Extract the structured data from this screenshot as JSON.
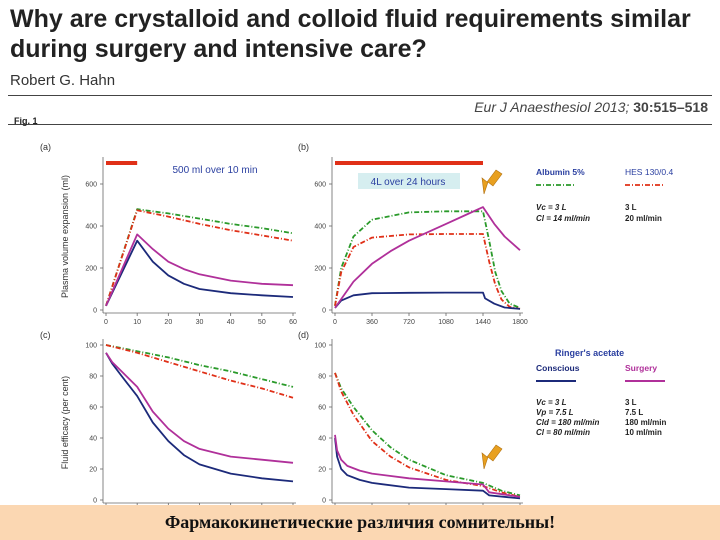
{
  "slide": {
    "title": "Why are crystalloid and colloid fluid requirements similar during surgery and intensive care?",
    "author": "Robert G. Hahn",
    "citation_journal": "Eur J Anaesthesiol 2013;",
    "citation_ref": "30:515–518",
    "fig_label": "Fig. 1",
    "footer": "Фармакокинетические различия сомнительны!"
  },
  "colors": {
    "albumin": "#2a9a2a",
    "hes": "#e03018",
    "conscious": "#1c2a7a",
    "surgery": "#b0309a",
    "infusion_bar": "#e03018",
    "annotation_text": "#2a3fa0",
    "arrow": "#e8a020"
  },
  "legend": {
    "colloid": {
      "albumin_label": "Albumin 5%",
      "hes_label": "HES 130/0.4",
      "albumin_params": [
        "Vc = 3 L",
        "Cl = 14 ml/min"
      ],
      "hes_params": [
        "3 L",
        "20 ml/min"
      ]
    },
    "crystalloid": {
      "header": "Ringer's acetate",
      "conscious_label": "Conscious",
      "surgery_label": "Surgery",
      "conscious_params": [
        "Vc = 3 L",
        "Vp = 7.5 L",
        "Cld = 180 ml/min",
        "Cl = 80 ml/min"
      ],
      "surgery_params": [
        "3 L",
        "7.5 L",
        "180 ml/min",
        "10 ml/min"
      ]
    }
  },
  "chart_data": [
    {
      "panel": "(a)",
      "type": "line",
      "ylabel": "Plasma volume expansion (ml)",
      "xlim": [
        0,
        60
      ],
      "ylim": [
        0,
        700
      ],
      "xticks": [
        0,
        10,
        20,
        30,
        40,
        50,
        60
      ],
      "yticks": [
        0,
        200,
        400,
        600
      ],
      "annotation": "500 ml over 10 min",
      "infusion": [
        0,
        10
      ],
      "series": [
        {
          "name": "Albumin 5%",
          "color_key": "albumin",
          "dash": true,
          "x": [
            0,
            10,
            20,
            30,
            40,
            50,
            60
          ],
          "y": [
            20,
            480,
            460,
            435,
            410,
            390,
            365
          ]
        },
        {
          "name": "HES 130/0.4",
          "color_key": "hes",
          "dash": true,
          "x": [
            0,
            10,
            20,
            30,
            40,
            50,
            60
          ],
          "y": [
            20,
            475,
            445,
            410,
            380,
            355,
            330
          ]
        },
        {
          "name": "Conscious",
          "color_key": "conscious",
          "dash": false,
          "x": [
            0,
            10,
            15,
            20,
            25,
            30,
            40,
            50,
            60
          ],
          "y": [
            20,
            330,
            230,
            165,
            125,
            100,
            80,
            70,
            62
          ]
        },
        {
          "name": "Surgery",
          "color_key": "surgery",
          "dash": false,
          "x": [
            0,
            10,
            15,
            20,
            25,
            30,
            40,
            50,
            60
          ],
          "y": [
            20,
            360,
            290,
            230,
            195,
            170,
            140,
            125,
            118
          ]
        }
      ]
    },
    {
      "panel": "(b)",
      "type": "line",
      "xlim": [
        0,
        1800
      ],
      "ylim": [
        0,
        700
      ],
      "xticks": [
        0,
        360,
        720,
        1080,
        1440,
        1800
      ],
      "yticks": [
        0,
        200,
        400,
        600
      ],
      "annotation": "4L over 24 hours",
      "infusion": [
        0,
        1440
      ],
      "series": [
        {
          "name": "Albumin 5%",
          "color_key": "albumin",
          "dash": true,
          "x": [
            0,
            60,
            180,
            360,
            720,
            1080,
            1440,
            1500,
            1560,
            1620,
            1700,
            1800
          ],
          "y": [
            20,
            200,
            350,
            430,
            465,
            470,
            470,
            330,
            180,
            90,
            30,
            10
          ]
        },
        {
          "name": "HES 130/0.4",
          "color_key": "hes",
          "dash": true,
          "x": [
            0,
            60,
            180,
            360,
            720,
            1080,
            1440,
            1500,
            1560,
            1620,
            1700,
            1800
          ],
          "y": [
            20,
            180,
            300,
            345,
            360,
            362,
            362,
            230,
            120,
            50,
            15,
            5
          ]
        },
        {
          "name": "Conscious",
          "color_key": "conscious",
          "dash": false,
          "x": [
            0,
            60,
            180,
            360,
            720,
            1080,
            1440,
            1460,
            1550,
            1650,
            1800
          ],
          "y": [
            10,
            45,
            70,
            80,
            82,
            83,
            83,
            55,
            30,
            12,
            5
          ]
        },
        {
          "name": "Surgery",
          "color_key": "surgery",
          "dash": false,
          "x": [
            0,
            180,
            360,
            540,
            720,
            900,
            1080,
            1260,
            1440,
            1550,
            1650,
            1800
          ],
          "y": [
            10,
            135,
            220,
            280,
            330,
            370,
            410,
            450,
            490,
            410,
            350,
            285
          ]
        }
      ]
    },
    {
      "panel": "(c)",
      "type": "line",
      "ylabel": "Fluid efficacy (per cent)",
      "xlim": [
        0,
        60
      ],
      "ylim": [
        0,
        100
      ],
      "xticks": [
        0,
        10,
        20,
        30,
        40,
        50,
        60
      ],
      "yticks": [
        0,
        20,
        40,
        60,
        80,
        100
      ],
      "series": [
        {
          "name": "Albumin 5%",
          "color_key": "albumin",
          "dash": true,
          "x": [
            0,
            10,
            20,
            30,
            40,
            50,
            60
          ],
          "y": [
            100,
            96,
            92,
            87,
            83,
            78,
            73
          ]
        },
        {
          "name": "HES 130/0.4",
          "color_key": "hes",
          "dash": true,
          "x": [
            0,
            10,
            20,
            30,
            40,
            50,
            60
          ],
          "y": [
            100,
            95,
            89,
            83,
            77,
            72,
            66
          ]
        },
        {
          "name": "Conscious",
          "color_key": "conscious",
          "dash": false,
          "x": [
            0,
            2,
            5,
            10,
            15,
            20,
            25,
            30,
            40,
            50,
            60
          ],
          "y": [
            95,
            88,
            80,
            67,
            50,
            38,
            29,
            23,
            17,
            14,
            12
          ]
        },
        {
          "name": "Surgery",
          "color_key": "surgery",
          "dash": false,
          "x": [
            0,
            2,
            5,
            10,
            15,
            20,
            25,
            30,
            40,
            50,
            60
          ],
          "y": [
            95,
            89,
            83,
            73,
            57,
            46,
            38,
            33,
            28,
            26,
            24
          ]
        }
      ]
    },
    {
      "panel": "(d)",
      "type": "line",
      "xlim": [
        0,
        1800
      ],
      "ylim": [
        0,
        100
      ],
      "xticks": [
        0,
        360,
        720,
        1080,
        1440,
        1800
      ],
      "yticks": [
        0,
        20,
        40,
        60,
        80,
        100
      ],
      "series": [
        {
          "name": "Albumin 5%",
          "color_key": "albumin",
          "dash": true,
          "x": [
            0,
            60,
            180,
            360,
            540,
            720,
            1080,
            1440,
            1620,
            1800
          ],
          "y": [
            82,
            72,
            60,
            45,
            34,
            26,
            16,
            11,
            6,
            3
          ]
        },
        {
          "name": "HES 130/0.4",
          "color_key": "hes",
          "dash": true,
          "x": [
            0,
            60,
            180,
            360,
            540,
            720,
            1080,
            1440,
            1620,
            1800
          ],
          "y": [
            82,
            70,
            55,
            38,
            28,
            21,
            13,
            9,
            5,
            2
          ]
        },
        {
          "name": "Conscious",
          "color_key": "conscious",
          "dash": false,
          "x": [
            0,
            20,
            60,
            120,
            240,
            360,
            720,
            1080,
            1440,
            1500,
            1800
          ],
          "y": [
            40,
            28,
            20,
            16,
            13,
            11,
            8,
            7,
            6,
            3,
            1
          ]
        },
        {
          "name": "Surgery",
          "color_key": "surgery",
          "dash": false,
          "x": [
            0,
            20,
            60,
            120,
            240,
            360,
            720,
            1080,
            1440,
            1500,
            1800
          ],
          "y": [
            42,
            32,
            26,
            22,
            19,
            17,
            14,
            12,
            10,
            5,
            2
          ]
        }
      ]
    }
  ]
}
